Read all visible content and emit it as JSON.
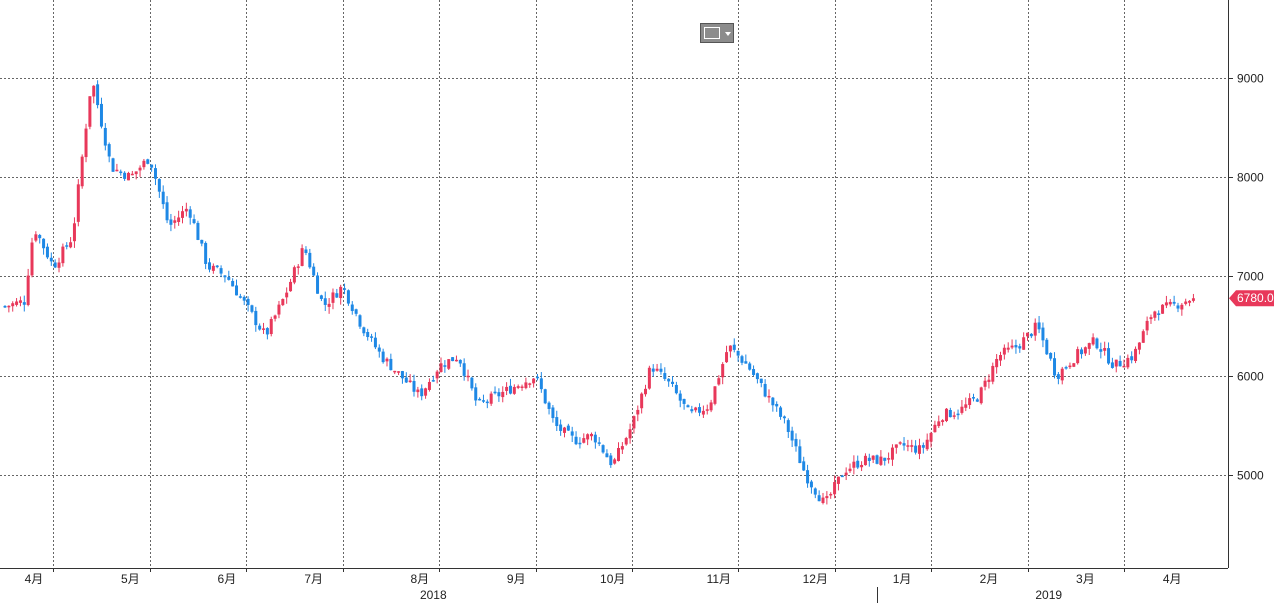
{
  "chart_data": {
    "type": "candlestick",
    "ylim": [
      4300,
      9800
    ],
    "y_ticks": [
      5000,
      6000,
      7000,
      8000,
      9000
    ],
    "grid": true,
    "last_price_label": "6780.0",
    "colors": {
      "up": "#e8385a",
      "down": "#1e88e5",
      "last_price_bg": "#e8385a",
      "grid": "#666666"
    },
    "months": [
      {
        "label": "4月",
        "center_week": 1.5,
        "year": "2018"
      },
      {
        "label": "5月",
        "center_week": 6.5,
        "year": "2018"
      },
      {
        "label": "6月",
        "center_week": 11.5,
        "year": "2018"
      },
      {
        "label": "7月",
        "center_week": 16,
        "year": "2018"
      },
      {
        "label": "8月",
        "center_week": 21.5,
        "year": "2018"
      },
      {
        "label": "9月",
        "center_week": 26.5,
        "year": "2018"
      },
      {
        "label": "10月",
        "center_week": 31.5,
        "year": "2018"
      },
      {
        "label": "11月",
        "center_week": 37,
        "year": "2018"
      },
      {
        "label": "12月",
        "center_week": 42,
        "year": "2018"
      },
      {
        "label": "1月",
        "center_week": 46.5,
        "year": "2019"
      },
      {
        "label": "2月",
        "center_week": 51,
        "year": "2019"
      },
      {
        "label": "3月",
        "center_week": 56,
        "year": "2019"
      },
      {
        "label": "4月",
        "center_week": 60.5,
        "year": "2019"
      }
    ],
    "month_boundaries_week": [
      2.5,
      7.5,
      12.5,
      17.5,
      22.5,
      27.5,
      32.5,
      38,
      43,
      48,
      53,
      58
    ],
    "years": [
      {
        "label": "2018",
        "center_week": 22.2
      },
      {
        "label": "2019",
        "center_week": 54.1
      }
    ],
    "year_boundary_week": 45.2,
    "week_span": [
      0,
      62.2
    ],
    "waypoints": [
      [
        0,
        6700
      ],
      [
        1,
        6750
      ],
      [
        1.5,
        7500
      ],
      [
        2.5,
        7100
      ],
      [
        3.5,
        7400
      ],
      [
        4.5,
        9000
      ],
      [
        5.5,
        8100
      ],
      [
        6.5,
        8000
      ],
      [
        7.5,
        8200
      ],
      [
        8.5,
        7500
      ],
      [
        9.5,
        7700
      ],
      [
        10.5,
        7100
      ],
      [
        11.5,
        7000
      ],
      [
        12.5,
        6700
      ],
      [
        13.5,
        6400
      ],
      [
        14.5,
        6800
      ],
      [
        15.5,
        7300
      ],
      [
        16.5,
        6700
      ],
      [
        17.5,
        6900
      ],
      [
        18.5,
        6500
      ],
      [
        19.5,
        6200
      ],
      [
        20.5,
        6000
      ],
      [
        21.5,
        5800
      ],
      [
        22.5,
        6100
      ],
      [
        23.5,
        6200
      ],
      [
        24.5,
        5700
      ],
      [
        25.5,
        5800
      ],
      [
        26.5,
        5900
      ],
      [
        27.5,
        6000
      ],
      [
        28.5,
        5500
      ],
      [
        29.5,
        5350
      ],
      [
        30.5,
        5400
      ],
      [
        31.5,
        5100
      ],
      [
        32.5,
        5500
      ],
      [
        33.5,
        6100
      ],
      [
        34.5,
        5900
      ],
      [
        35.5,
        5600
      ],
      [
        36.5,
        5700
      ],
      [
        37.5,
        6300
      ],
      [
        38.5,
        6100
      ],
      [
        39.5,
        5800
      ],
      [
        40.5,
        5500
      ],
      [
        41.5,
        5000
      ],
      [
        42.5,
        4700
      ],
      [
        43.5,
        5050
      ],
      [
        44.5,
        5150
      ],
      [
        45.5,
        5150
      ],
      [
        46.5,
        5300
      ],
      [
        47.5,
        5250
      ],
      [
        48.5,
        5600
      ],
      [
        49.5,
        5650
      ],
      [
        50.5,
        5800
      ],
      [
        51.5,
        6200
      ],
      [
        52.5,
        6300
      ],
      [
        53.5,
        6500
      ],
      [
        54.5,
        6000
      ],
      [
        55.5,
        6200
      ],
      [
        56.5,
        6350
      ],
      [
        57.5,
        6100
      ],
      [
        58.5,
        6200
      ],
      [
        59.5,
        6650
      ],
      [
        60.5,
        6700
      ],
      [
        61.5,
        6780
      ]
    ]
  },
  "toolbar": {
    "chart_type_icon": "line-chart-icon"
  }
}
